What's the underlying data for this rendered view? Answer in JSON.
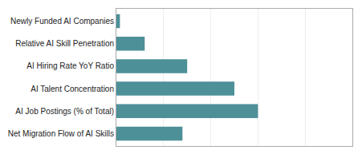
{
  "chart_data": {
    "type": "bar",
    "orientation": "horizontal",
    "categories": [
      "Net Migration Flow of AI Skills",
      "AI Job Postings (% of Total)",
      "AI Talent Concentration",
      "AI Hiring Rate YoY Ratio",
      "Relative AI Skill Penetration",
      "Newly Funded AI Companies"
    ],
    "values": [
      28,
      60,
      50,
      30,
      12,
      1.5
    ],
    "color": "#4d9098",
    "xlim": [
      0,
      100
    ],
    "xticks": [
      0,
      20,
      40,
      60,
      80,
      100
    ],
    "grid": true,
    "tick_labels": "y"
  }
}
